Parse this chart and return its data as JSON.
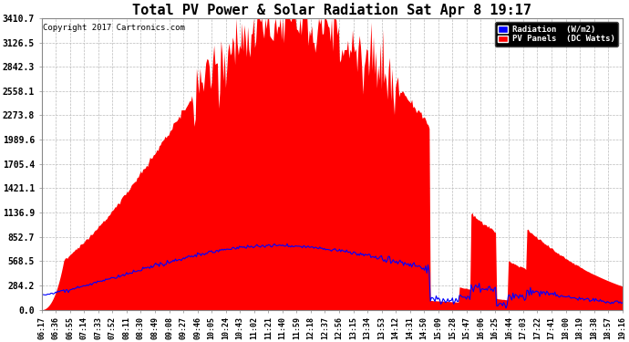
{
  "title": "Total PV Power & Solar Radiation Sat Apr 8 19:17",
  "copyright_text": "Copyright 2017 Cartronics.com",
  "yticks": [
    0.0,
    284.2,
    568.5,
    852.7,
    1136.9,
    1421.1,
    1705.4,
    1989.6,
    2273.8,
    2558.1,
    2842.3,
    3126.5,
    3410.7
  ],
  "ymax": 3410.7,
  "bg_color": "#ffffff",
  "plot_bg_color": "#ffffff",
  "grid_color": "#bbbbbb",
  "fill_color": "#ff0000",
  "line_color": "#0000ff",
  "title_fontsize": 11,
  "legend_radiation_label": "Radiation  (W/m2)",
  "legend_pv_label": "PV Panels  (DC Watts)",
  "legend_radiation_color": "#0000ff",
  "legend_pv_color": "#ff0000"
}
